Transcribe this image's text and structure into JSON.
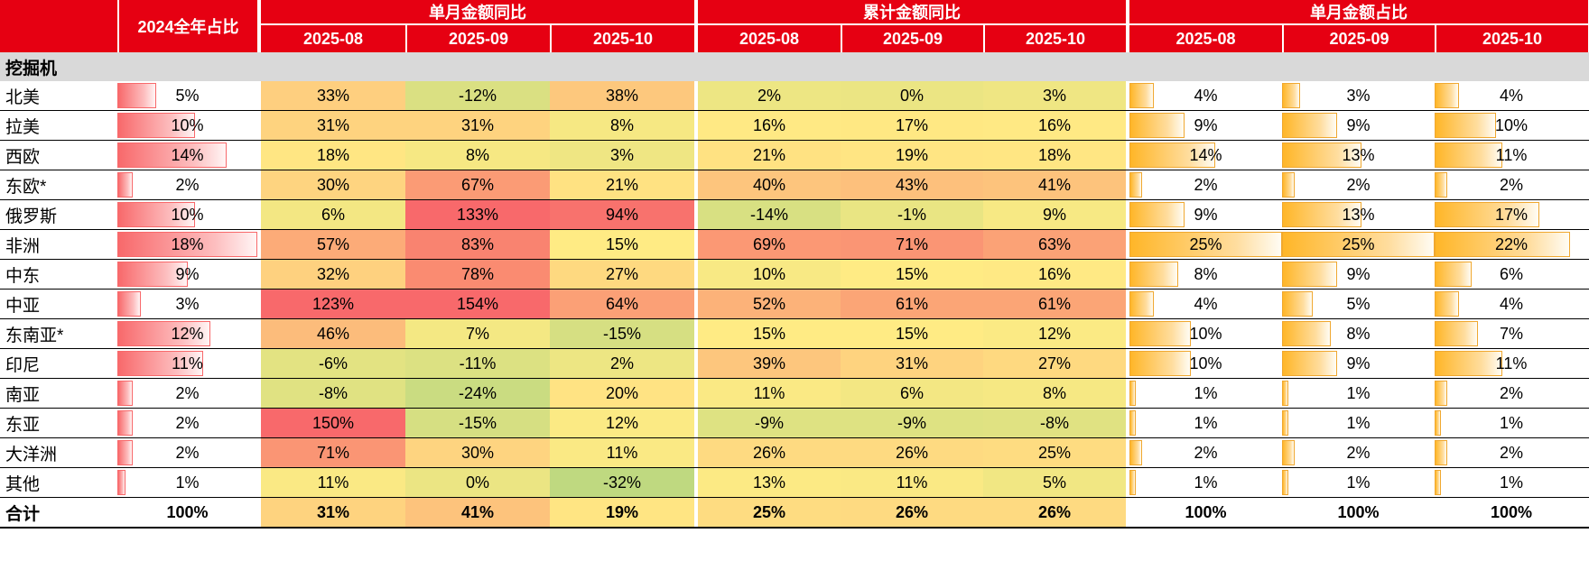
{
  "chart_data": {
    "type": "table",
    "section": "挖掘机",
    "unit": "%",
    "column_groups": [
      {
        "id": "share2024",
        "label": "2024全年占比",
        "columns": [
          "2024全年占比"
        ]
      },
      {
        "id": "mom_yoy",
        "label": "单月金额同比",
        "columns": [
          "2025-08",
          "2025-09",
          "2025-10"
        ]
      },
      {
        "id": "cum_yoy",
        "label": "累计金额同比",
        "columns": [
          "2025-08",
          "2025-09",
          "2025-10"
        ]
      },
      {
        "id": "month_share",
        "label": "单月金额占比",
        "columns": [
          "2025-08",
          "2025-09",
          "2025-10"
        ]
      }
    ],
    "rows": [
      {
        "label": "北美",
        "share2024": 5,
        "mom_yoy": [
          33,
          -12,
          38
        ],
        "cum_yoy": [
          2,
          0,
          3
        ],
        "month_share": [
          4,
          3,
          4
        ],
        "total": false
      },
      {
        "label": "拉美",
        "share2024": 10,
        "mom_yoy": [
          31,
          31,
          8
        ],
        "cum_yoy": [
          16,
          17,
          16
        ],
        "month_share": [
          9,
          9,
          10
        ],
        "total": false
      },
      {
        "label": "西欧",
        "share2024": 14,
        "mom_yoy": [
          18,
          8,
          3
        ],
        "cum_yoy": [
          21,
          19,
          18
        ],
        "month_share": [
          14,
          13,
          11
        ],
        "total": false
      },
      {
        "label": "东欧*",
        "share2024": 2,
        "mom_yoy": [
          30,
          67,
          21
        ],
        "cum_yoy": [
          40,
          43,
          41
        ],
        "month_share": [
          2,
          2,
          2
        ],
        "total": false
      },
      {
        "label": "俄罗斯",
        "share2024": 10,
        "mom_yoy": [
          6,
          133,
          94
        ],
        "cum_yoy": [
          -14,
          -1,
          9
        ],
        "month_share": [
          9,
          13,
          17
        ],
        "total": false
      },
      {
        "label": "非洲",
        "share2024": 18,
        "mom_yoy": [
          57,
          83,
          15
        ],
        "cum_yoy": [
          69,
          71,
          63
        ],
        "month_share": [
          25,
          25,
          22
        ],
        "total": false
      },
      {
        "label": "中东",
        "share2024": 9,
        "mom_yoy": [
          32,
          78,
          27
        ],
        "cum_yoy": [
          10,
          15,
          16
        ],
        "month_share": [
          8,
          9,
          6
        ],
        "total": false
      },
      {
        "label": "中亚",
        "share2024": 3,
        "mom_yoy": [
          123,
          154,
          64
        ],
        "cum_yoy": [
          52,
          61,
          61
        ],
        "month_share": [
          4,
          5,
          4
        ],
        "total": false
      },
      {
        "label": "东南亚*",
        "share2024": 12,
        "mom_yoy": [
          46,
          7,
          -15
        ],
        "cum_yoy": [
          15,
          15,
          12
        ],
        "month_share": [
          10,
          8,
          7
        ],
        "total": false
      },
      {
        "label": "印尼",
        "share2024": 11,
        "mom_yoy": [
          -6,
          -11,
          2
        ],
        "cum_yoy": [
          39,
          31,
          27
        ],
        "month_share": [
          10,
          9,
          11
        ],
        "total": false
      },
      {
        "label": "南亚",
        "share2024": 2,
        "mom_yoy": [
          -8,
          -24,
          20
        ],
        "cum_yoy": [
          11,
          6,
          8
        ],
        "month_share": [
          1,
          1,
          2
        ],
        "total": false
      },
      {
        "label": "东亚",
        "share2024": 2,
        "mom_yoy": [
          150,
          -15,
          12
        ],
        "cum_yoy": [
          -9,
          -9,
          -8
        ],
        "month_share": [
          1,
          1,
          1
        ],
        "total": false
      },
      {
        "label": "大洋洲",
        "share2024": 2,
        "mom_yoy": [
          71,
          30,
          11
        ],
        "cum_yoy": [
          26,
          26,
          25
        ],
        "month_share": [
          2,
          2,
          2
        ],
        "total": false
      },
      {
        "label": "其他",
        "share2024": 1,
        "mom_yoy": [
          11,
          0,
          -32
        ],
        "cum_yoy": [
          13,
          11,
          5
        ],
        "month_share": [
          1,
          1,
          1
        ],
        "total": false
      },
      {
        "label": "合计",
        "share2024": 100,
        "mom_yoy": [
          31,
          41,
          19
        ],
        "cum_yoy": [
          25,
          26,
          26
        ],
        "month_share": [
          100,
          100,
          100
        ],
        "total": true
      }
    ],
    "layout": {
      "legend": "none",
      "grid": "row-lines"
    },
    "style": {
      "header_bg": "#E60012",
      "header_text": "#FFFFFF",
      "section_bg": "#D9D9D9",
      "heat_scale": {
        "min": -100,
        "mid": 15,
        "max": 100,
        "min_color": "#63BE7B",
        "mid_color": "#FFEB84",
        "max_color": "#F8696B"
      },
      "share_bar_color": "#F8696B",
      "month_share_bar_color": "#FFB628",
      "share_bar_max": 18,
      "month_share_bar_max": 25
    }
  }
}
